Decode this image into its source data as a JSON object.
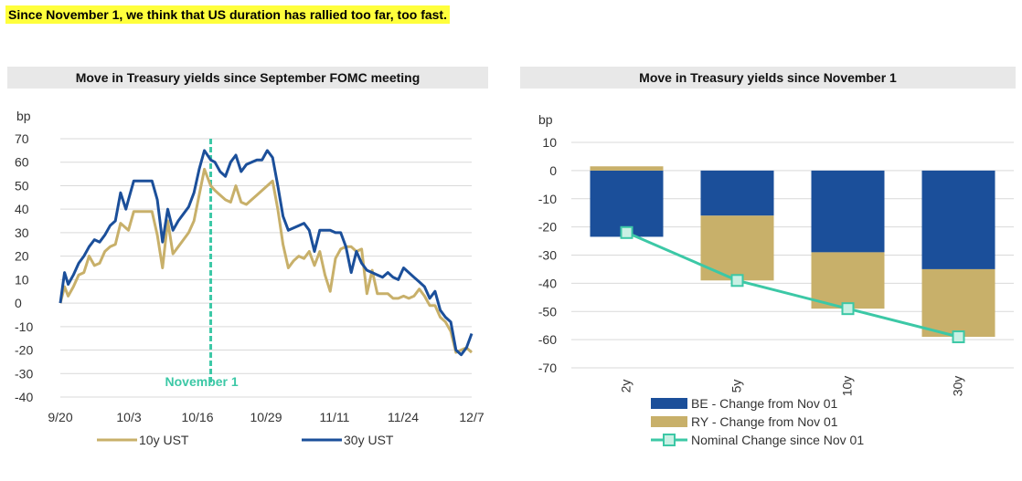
{
  "headline": "Since November 1, we think that US duration has rallied too far, too fast.",
  "colors": {
    "gold": "#c8b06a",
    "navy": "#1b4f9a",
    "teal": "#3cc8a6",
    "grid": "#d9d9d9",
    "headline_bg": "#ffff3c"
  },
  "chart_data": [
    {
      "type": "line",
      "title": "Move in Treasury yields since September FOMC meeting",
      "ylabel": "bp",
      "ylim": [
        -40,
        70
      ],
      "yticks": [
        70,
        60,
        50,
        40,
        30,
        20,
        10,
        0,
        -10,
        -20,
        -30,
        -40
      ],
      "x_ticks": [
        "9/20",
        "10/3",
        "10/16",
        "10/29",
        "11/11",
        "11/24",
        "12/7"
      ],
      "grid": "horizontal",
      "legend_position": "bottom",
      "annotation": {
        "label": "November 1",
        "x": 28.7
      },
      "series": [
        {
          "name": "10y UST",
          "color": "gold",
          "x": [
            0,
            0.8,
            1.5,
            2.5,
            3.5,
            4.5,
            5.5,
            6.5,
            7.5,
            8.5,
            9.5,
            10.5,
            11.5,
            12.5,
            13,
            14,
            14.5,
            15.5,
            16.5,
            17.5,
            18.5,
            19.5,
            20.5,
            21.5,
            22.5,
            23.5,
            24.5,
            25.5,
            26.5,
            27.5,
            28.7,
            29.5,
            30.5,
            31.5,
            32.5,
            33.5,
            34.5,
            35.5,
            36.5,
            37.5,
            38.5,
            39.5,
            40.5,
            41.5,
            42.5,
            43.5,
            44.5,
            45.5,
            46.5,
            47.5,
            48.5,
            49.5,
            50.5,
            51.5,
            52.5,
            53.5,
            54.5,
            55.5,
            56.5,
            57.5,
            58.5,
            59.5,
            60.5,
            61.5,
            62.5,
            63.5,
            64.5,
            65.5,
            66.5,
            67.5,
            68.5,
            69.5,
            70.5,
            71.5,
            72.5,
            73.5,
            74.5,
            75.5,
            76.5,
            77.5,
            78.5
          ],
          "y": [
            0,
            7,
            3,
            7,
            12,
            13,
            20,
            16,
            17,
            22,
            24,
            25,
            34,
            32,
            31,
            39,
            39,
            39,
            39,
            39,
            29,
            15,
            35,
            21,
            24,
            27,
            30,
            35,
            46,
            57,
            50,
            48,
            46,
            44,
            43,
            50,
            43,
            42,
            44,
            46,
            48,
            50,
            52,
            40,
            25,
            15,
            18,
            20,
            19,
            22,
            16,
            22,
            12,
            5,
            19,
            23,
            24,
            24,
            22,
            23,
            4,
            14,
            4,
            4,
            4,
            2,
            2,
            3,
            2,
            3,
            6,
            3,
            -1,
            -1,
            -6,
            -8,
            -12,
            -21,
            -20,
            -19,
            -21
          ]
        },
        {
          "name": "30y UST",
          "color": "navy",
          "x": [
            0,
            0.8,
            1.5,
            2.5,
            3.5,
            4.5,
            5.5,
            6.5,
            7.5,
            8.5,
            9.5,
            10.5,
            11.5,
            12.5,
            13,
            14,
            14.5,
            15.5,
            16.5,
            17.5,
            18.5,
            19.5,
            20.5,
            21.5,
            22.5,
            23.5,
            24.5,
            25.5,
            26.5,
            27.5,
            28.7,
            29.5,
            30.5,
            31.5,
            32.5,
            33.5,
            34.5,
            35.5,
            36.5,
            37.5,
            38.5,
            39.5,
            40.5,
            41.5,
            42.5,
            43.5,
            44.5,
            45.5,
            46.5,
            47.5,
            48.5,
            49.5,
            50.5,
            51.5,
            52.5,
            53.5,
            54.5,
            55.5,
            56.5,
            57.5,
            58.5,
            59.5,
            60.5,
            61.5,
            62.5,
            63.5,
            64.5,
            65.5,
            66.5,
            67.5,
            68.5,
            69.5,
            70.5,
            71.5,
            72.5,
            73.5,
            74.5,
            75.5,
            76.5,
            77.5,
            78.5
          ],
          "y": [
            0,
            13,
            8,
            12,
            17,
            20,
            24,
            27,
            26,
            29,
            33,
            35,
            47,
            40,
            44,
            52,
            52,
            52,
            52,
            52,
            44,
            26,
            40,
            31,
            35,
            38,
            41,
            47,
            57,
            65,
            61,
            60,
            56,
            54,
            60,
            63,
            56,
            59,
            60,
            61,
            61,
            65,
            62,
            50,
            37,
            31,
            32,
            33,
            34,
            31,
            22,
            31,
            31,
            31,
            30,
            30,
            24,
            13,
            22,
            17,
            14,
            13,
            12,
            11,
            13,
            11,
            10,
            15,
            13,
            11,
            9,
            7,
            2,
            5,
            -3,
            -6,
            -8,
            -20,
            -22,
            -19,
            -13
          ]
        }
      ]
    },
    {
      "type": "bar",
      "title": "Move in Treasury yields since November 1",
      "ylabel": "bp",
      "ylim": [
        -70,
        10
      ],
      "yticks": [
        10,
        0,
        -10,
        -20,
        -30,
        -40,
        -50,
        -60,
        -70
      ],
      "categories": [
        "2y",
        "5y",
        "10y",
        "30y"
      ],
      "grid": "horizontal",
      "legend_position": "bottom",
      "series": [
        {
          "name": "BE - Change from Nov 01",
          "color": "navy",
          "values": [
            -23.5,
            -16,
            -29,
            -35
          ]
        },
        {
          "name": "RY - Change from Nov 01",
          "color": "gold",
          "values": [
            1.5,
            -23,
            -20,
            -24
          ]
        },
        {
          "name": "Nominal Change since Nov 01",
          "color": "teal",
          "type": "line",
          "values": [
            -22,
            -39,
            -49,
            -59
          ]
        }
      ]
    }
  ]
}
